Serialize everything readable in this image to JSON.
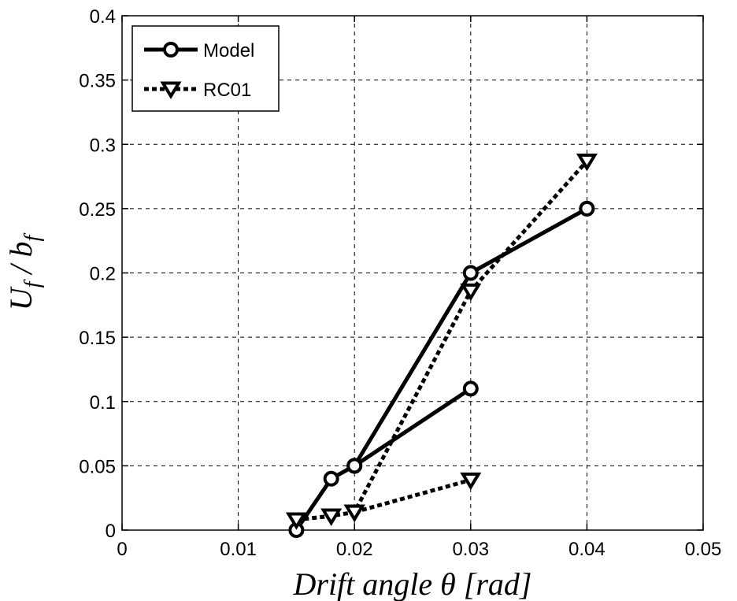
{
  "chart_data": {
    "type": "line",
    "xlabel": "Drift angle θ [rad]",
    "ylabel": {
      "base_u": "U",
      "sub_f": "f",
      "slash": " / ",
      "base_b": "b"
    },
    "xlim": [
      0,
      0.05
    ],
    "ylim": [
      0,
      0.4
    ],
    "x_ticks": [
      0,
      0.01,
      0.02,
      0.03,
      0.04,
      0.05
    ],
    "x_tick_labels": [
      "0",
      "0.01",
      "0.02",
      "0.03",
      "0.04",
      "0.05"
    ],
    "y_ticks": [
      0,
      0.05,
      0.1,
      0.15,
      0.2,
      0.25,
      0.3,
      0.35,
      0.4
    ],
    "y_tick_labels": [
      "0",
      "0.05",
      "0.1",
      "0.15",
      "0.2",
      "0.25",
      "0.3",
      "0.35",
      "0.4"
    ],
    "grid": true,
    "legend_position": "top-left",
    "series": [
      {
        "name": "Model",
        "marker": "circle",
        "line_style": "solid",
        "color": "#000000",
        "x": [
          0.015,
          0.018,
          0.02,
          0.03,
          0.04
        ],
        "y": [
          0.0,
          0.04,
          0.05,
          0.2,
          0.25
        ]
      },
      {
        "name": "Model",
        "legend": false,
        "marker": "circle",
        "line_style": "solid",
        "color": "#000000",
        "x": [
          0.02,
          0.03
        ],
        "y": [
          0.05,
          0.11
        ]
      },
      {
        "name": "RC01",
        "marker": "triangle-down",
        "line_style": "dotted",
        "color": "#000000",
        "x": [
          0.015,
          0.018,
          0.02,
          0.03,
          0.04
        ],
        "y": [
          0.008,
          0.011,
          0.014,
          0.186,
          0.287
        ]
      },
      {
        "name": "RC01",
        "legend": false,
        "marker": "triangle-down",
        "line_style": "dotted",
        "color": "#000000",
        "x": [
          0.02,
          0.03
        ],
        "y": [
          0.014,
          0.039
        ]
      }
    ]
  }
}
